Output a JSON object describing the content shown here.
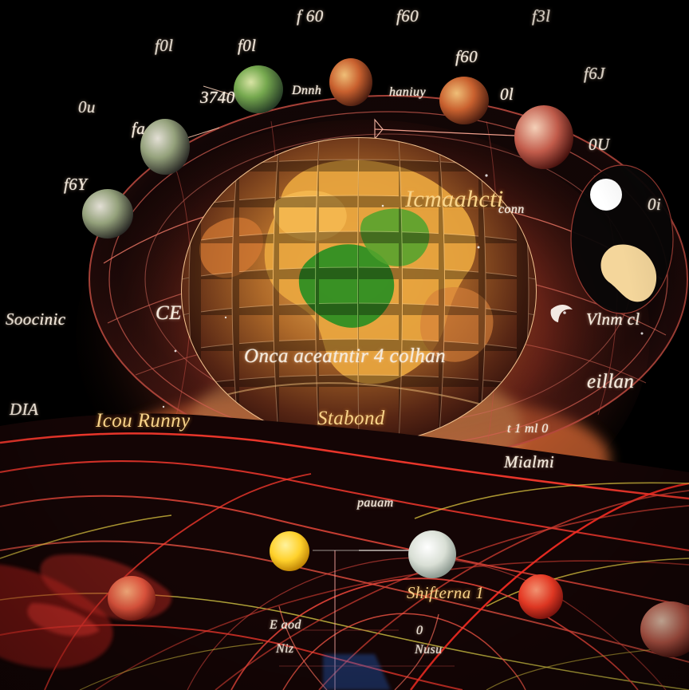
{
  "labels": {
    "top_1": "f 60",
    "top_2": "f60",
    "top_3": "f3l",
    "upper_left_1": "f0l",
    "upper_left_2": "f0l",
    "upper_right_1": "f60",
    "upper_right_2": "f6J",
    "left_orbit_1": "0u",
    "left_orbit_2": "fa",
    "left_orbit_3": "f6Y",
    "sphere_top_left": "3740",
    "sphere_top_mid": "Dnnh",
    "sphere_top_right": "haniuy",
    "right_orbit_1": "0l",
    "right_orbit_2": "0U",
    "right_orbit_3": "0i",
    "globe_top": "Icmaahcti",
    "globe_top_right": "conn",
    "globe_left": "CE",
    "globe_center": "Onca aceatntir 4 colhan",
    "globe_bottom": "Stabond",
    "left_side_1": "Soocinic",
    "left_side_2": "DIA",
    "left_lower_1": "Icou Runny",
    "right_side_1": "Vlnm cl",
    "right_side_2": "eillan",
    "right_side_3": "t 1 ml 0",
    "right_side_4": "Mialmi",
    "lower_center": "pauam",
    "lower_right": "Shifterna 1",
    "bottom_left_1": "E aod",
    "bottom_left_2": "Niz",
    "bottom_mid_1": "0",
    "bottom_mid_2": "Nusu"
  },
  "colors": {
    "background": "#000000",
    "glow_orange": "#ff9a3c",
    "glow_red": "#d93822",
    "grid_red": "#ff3b2f",
    "grid_yellow": "#e6d245",
    "land_green": "#2f8f23",
    "planet_yellow": "#ffd22d",
    "planet_pale": "#d5ddd2",
    "planet_red": "#f13b25"
  }
}
